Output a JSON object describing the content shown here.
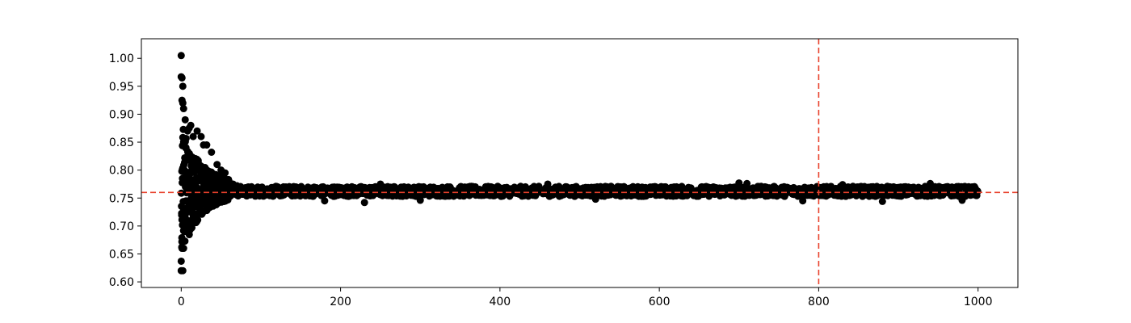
{
  "colors": {
    "points": "#000000",
    "reference_lines": "#e8412b",
    "background": "#ffffff"
  },
  "chart_data": {
    "type": "scatter",
    "title": "",
    "xlabel": "",
    "ylabel": "",
    "xlim": [
      -50,
      1050
    ],
    "ylim": [
      0.59,
      1.035
    ],
    "x_ticks": [
      0,
      200,
      400,
      600,
      800,
      1000
    ],
    "x_tick_labels": [
      "0",
      "200",
      "400",
      "600",
      "800",
      "1000"
    ],
    "y_ticks": [
      0.6,
      0.65,
      0.7,
      0.75,
      0.8,
      0.85,
      0.9,
      0.95,
      1.0
    ],
    "y_tick_labels": [
      "0.60",
      "0.65",
      "0.70",
      "0.75",
      "0.80",
      "0.85",
      "0.90",
      "0.95",
      "1.00"
    ],
    "grid": false,
    "reference_lines": [
      {
        "orientation": "horizontal",
        "value": 0.76,
        "style": "dashed"
      },
      {
        "orientation": "vertical",
        "value": 800,
        "style": "dashed"
      }
    ],
    "series": [
      {
        "marker": "circle",
        "points": [
          [
            0,
            1.005
          ],
          [
            0,
            0.967
          ],
          [
            1,
            0.965
          ],
          [
            2,
            0.95
          ],
          [
            1,
            0.925
          ],
          [
            2,
            0.92
          ],
          [
            3,
            0.91
          ],
          [
            0,
            0.62
          ],
          [
            2,
            0.62
          ],
          [
            0,
            0.637
          ],
          [
            1,
            0.66
          ],
          [
            3,
            0.66
          ],
          [
            2,
            0.675
          ],
          [
            4,
            0.69
          ],
          [
            5,
            0.7
          ],
          [
            6,
            0.71
          ],
          [
            8,
            0.725
          ],
          [
            10,
            0.74
          ],
          [
            15,
            0.72
          ],
          [
            18,
            0.72
          ],
          [
            5,
            0.89
          ],
          [
            8,
            0.87
          ],
          [
            10,
            0.875
          ],
          [
            12,
            0.88
          ],
          [
            15,
            0.86
          ],
          [
            20,
            0.87
          ],
          [
            25,
            0.86
          ],
          [
            28,
            0.845
          ],
          [
            32,
            0.845
          ],
          [
            38,
            0.832
          ],
          [
            45,
            0.81
          ],
          [
            50,
            0.8
          ],
          [
            55,
            0.795
          ],
          [
            3,
            0.85
          ],
          [
            6,
            0.84
          ],
          [
            9,
            0.83
          ],
          [
            12,
            0.82
          ],
          [
            16,
            0.81
          ],
          [
            22,
            0.8
          ],
          [
            28,
            0.79
          ],
          [
            35,
            0.785
          ],
          [
            42,
            0.78
          ],
          [
            60,
            0.78
          ],
          [
            65,
            0.775
          ],
          [
            70,
            0.772
          ],
          [
            4,
            0.8
          ],
          [
            7,
            0.79
          ],
          [
            11,
            0.785
          ],
          [
            14,
            0.775
          ],
          [
            19,
            0.77
          ],
          [
            24,
            0.765
          ],
          [
            30,
            0.76
          ],
          [
            36,
            0.755
          ],
          [
            40,
            0.75
          ],
          [
            47,
            0.745
          ],
          [
            52,
            0.75
          ],
          [
            58,
            0.755
          ],
          [
            6,
            0.745
          ],
          [
            9,
            0.735
          ],
          [
            13,
            0.74
          ],
          [
            17,
            0.75
          ],
          [
            21,
            0.745
          ],
          [
            27,
            0.74
          ]
        ],
        "band": {
          "x_range": [
            60,
            1000
          ],
          "center": 0.762,
          "half_width": 0.009,
          "outliers": [
            [
              180,
              0.745
            ],
            [
              230,
              0.742
            ],
            [
              250,
              0.775
            ],
            [
              300,
              0.746
            ],
            [
              460,
              0.775
            ],
            [
              520,
              0.748
            ],
            [
              700,
              0.777
            ],
            [
              710,
              0.776
            ],
            [
              780,
              0.745
            ],
            [
              830,
              0.774
            ],
            [
              880,
              0.744
            ],
            [
              940,
              0.776
            ],
            [
              980,
              0.746
            ]
          ]
        }
      }
    ]
  }
}
